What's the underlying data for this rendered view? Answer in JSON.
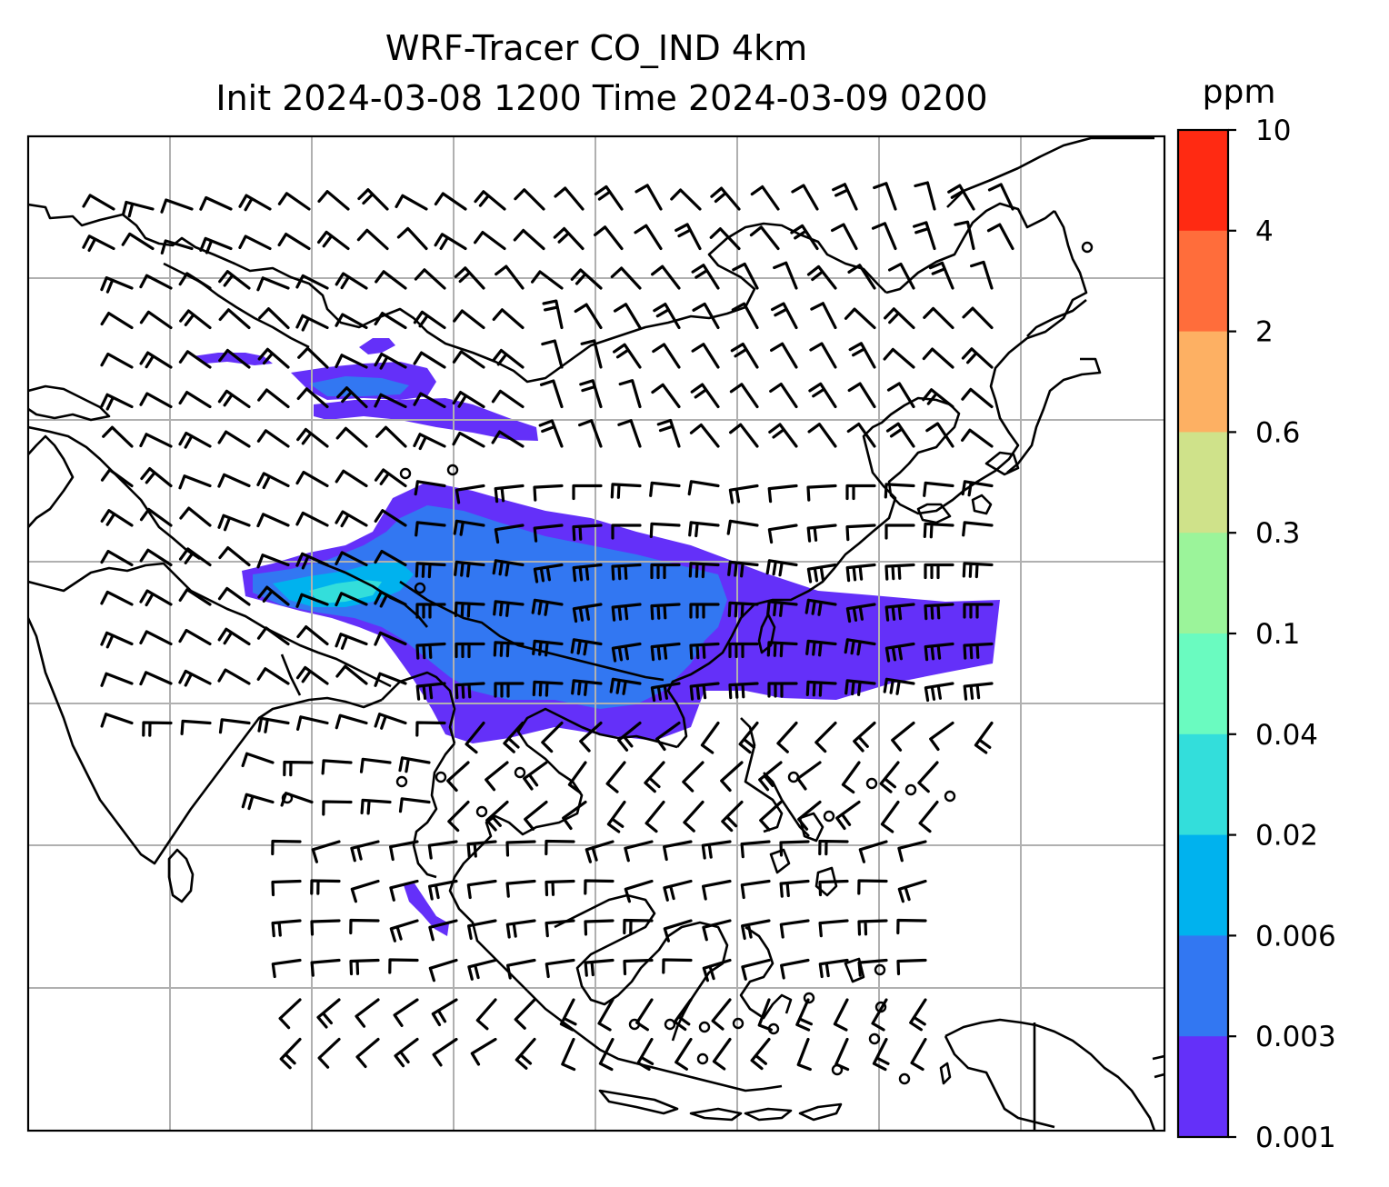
{
  "figure": {
    "title_line1": "WRF-Tracer CO_IND 4km",
    "title_line2": "Init 2024-03-08 1200 Time 2024-03-09 0200"
  },
  "colorbar": {
    "unit_label": "ppm",
    "ticks": [
      "10",
      "4",
      "2",
      "0.6",
      "0.3",
      "0.1",
      "0.04",
      "0.02",
      "0.006",
      "0.003",
      "0.001"
    ],
    "colors_top_to_bottom": [
      "#ff2a12",
      "#ff6d3b",
      "#fdb063",
      "#cfe28a",
      "#9bf49a",
      "#6afbc0",
      "#33dedb",
      "#00b2ee",
      "#3277f2",
      "#6430f9"
    ]
  },
  "map": {
    "plume_colors": {
      "low": "#6430f9",
      "mid": "#3277f2",
      "high": "#00b2ee",
      "peak": "#33dedb"
    },
    "gridlines": true,
    "wind_barbs": true,
    "calm_markers": true
  }
}
